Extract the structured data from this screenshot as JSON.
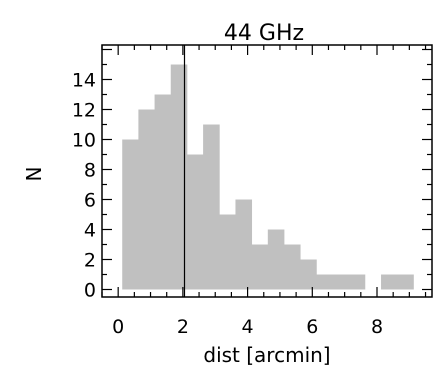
{
  "chart_data": {
    "type": "bar",
    "title": "44 GHz",
    "xlabel": "dist [arcmin]",
    "ylabel": "N",
    "xlim": [
      -0.5,
      9.7
    ],
    "ylim": [
      -0.5,
      16.3
    ],
    "bin_width": 0.5,
    "bins": [
      {
        "x": 0.125,
        "value": 10
      },
      {
        "x": 0.625,
        "value": 12
      },
      {
        "x": 1.125,
        "value": 13
      },
      {
        "x": 1.625,
        "value": 15
      },
      {
        "x": 2.125,
        "value": 9
      },
      {
        "x": 2.625,
        "value": 11
      },
      {
        "x": 3.125,
        "value": 5
      },
      {
        "x": 3.625,
        "value": 6
      },
      {
        "x": 4.125,
        "value": 3
      },
      {
        "x": 4.625,
        "value": 4
      },
      {
        "x": 5.125,
        "value": 3
      },
      {
        "x": 5.625,
        "value": 2
      },
      {
        "x": 6.125,
        "value": 1
      },
      {
        "x": 6.625,
        "value": 1
      },
      {
        "x": 7.125,
        "value": 1
      },
      {
        "x": 7.625,
        "value": 0
      },
      {
        "x": 8.125,
        "value": 1
      },
      {
        "x": 8.625,
        "value": 1
      }
    ],
    "vline_x": 2.05,
    "xticks": [
      0,
      2,
      4,
      6,
      8
    ],
    "yticks": [
      0,
      2,
      4,
      6,
      8,
      10,
      12,
      14
    ],
    "x_minor_step": 0.5,
    "y_minor_step": 1,
    "bar_color": "#c0c0c0",
    "grid": false,
    "legend": "none"
  }
}
